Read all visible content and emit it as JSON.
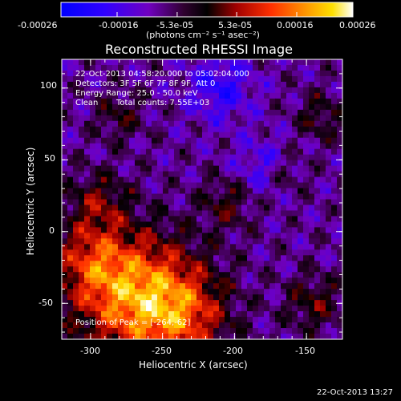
{
  "colorbar": {
    "ticks": [
      "-0.00026",
      "-0.00016",
      "-5.3e-05",
      "5.3e-05",
      "0.00016",
      "0.00026"
    ],
    "tick_values": [
      -0.00026,
      -0.00016,
      -5.3e-05,
      5.3e-05,
      0.00016,
      0.00026
    ],
    "range": [
      -0.00026,
      0.00026
    ],
    "units": "(photons cm⁻² s⁻¹ asec⁻²)",
    "stops": [
      "#0000ff",
      "#6a00c8",
      "#3a0030",
      "#000000",
      "#c00000",
      "#ff6600",
      "#ffcc00",
      "#ffffff"
    ]
  },
  "chart_data": {
    "type": "heatmap",
    "title": "Reconstructed RHESSI Image",
    "xlabel": "Heliocentric X (arcsec)",
    "ylabel": "Heliocentric Y (arcsec)",
    "xlim": [
      -320,
      -125
    ],
    "ylim": [
      -75,
      120
    ],
    "x_ticks": [
      -300,
      -250,
      -200,
      -150
    ],
    "y_ticks": [
      -50,
      0,
      50,
      100
    ],
    "peak": {
      "x": -264,
      "y": -62
    },
    "grid": false,
    "annotations": {
      "time_range": "22-Oct-2013 04:58:20.000 to 05:02:04.000",
      "detectors": "Detectors: 3F 5F 6F 7F 8F 9F, Att 0",
      "energy": "Energy Range: 25.0 - 50.0 keV",
      "clean_label": "Clean",
      "total_counts": "Total counts: 7.55E+03",
      "peak_text": "Position of Peak = [-264,-62]"
    }
  },
  "footer": {
    "timestamp": "22-Oct-2013 13:27"
  }
}
